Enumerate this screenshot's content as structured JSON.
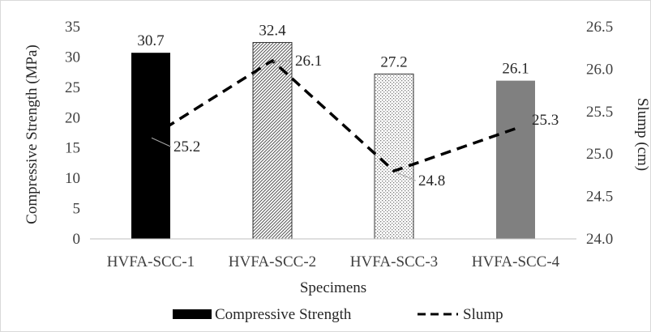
{
  "chart_data": {
    "type": "bar",
    "title": "",
    "categories": [
      "HVFA-SCC-1",
      "HVFA-SCC-2",
      "HVFA-SCC-3",
      "HVFA-SCC-4"
    ],
    "xlabel": "Specimens",
    "series": [
      {
        "name": "Compressive Strength",
        "type": "bar",
        "axis": "left",
        "values": [
          30.7,
          32.4,
          27.2,
          26.1
        ],
        "labels": [
          "30.7",
          "32.4",
          "27.2",
          "26.1"
        ],
        "fills": [
          "black",
          "dense-hatch",
          "light-dots",
          "gray"
        ],
        "colors": [
          "#000000",
          "#c8c8c8",
          "#e8e8e8",
          "#808080"
        ]
      },
      {
        "name": "Slump",
        "type": "line",
        "style": "dashed",
        "axis": "right",
        "values": [
          25.2,
          26.1,
          24.8,
          25.3
        ],
        "labels": [
          "25.2",
          "26.1",
          "24.8",
          "25.3"
        ],
        "color": "#000000"
      }
    ],
    "y_left": {
      "label": "Compressive Strength (MPa)",
      "ylim": [
        0,
        35
      ],
      "ticks": [
        0,
        5,
        10,
        15,
        20,
        25,
        30,
        35
      ],
      "tick_labels": [
        "0",
        "5",
        "10",
        "15",
        "20",
        "25",
        "30",
        "35"
      ]
    },
    "y_right": {
      "label": "Slump (cm)",
      "ylim": [
        24.0,
        26.5
      ],
      "ticks": [
        24.0,
        24.5,
        25.0,
        25.5,
        26.0,
        26.5
      ],
      "tick_labels": [
        "24.0",
        "24.5",
        "25.0",
        "25.5",
        "26.0",
        "26.5"
      ]
    },
    "grid": false,
    "legend": {
      "position": "bottom",
      "entries": [
        "Compressive Strength",
        "Slump"
      ]
    }
  }
}
